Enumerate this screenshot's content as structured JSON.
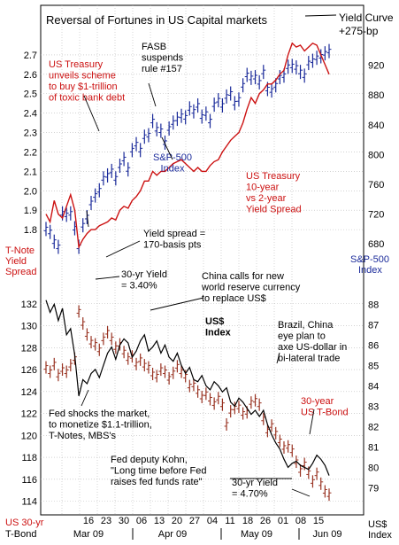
{
  "colors": {
    "background": "#ffffff",
    "grid": "#b8b8b8",
    "frame": "#000000",
    "spx": "#1a2a9a",
    "spread": "#cc1111",
    "tbond": "#993322",
    "dollar": "#000000",
    "ann_red": "#cc1111",
    "ann_blue": "#1a2a9a"
  },
  "texts": {
    "title": "Reversal of Fortunes in US Capital markets",
    "yield_curve": "Yield Curve",
    "yield_curve_value": "+275-bp",
    "left_top_label": [
      "T-Note",
      "Yield",
      "Spread"
    ],
    "right_top_label": [
      "S&P-500",
      "Index"
    ],
    "left_bottom_label": [
      "US 30-yr",
      "T-Bond"
    ],
    "right_bottom_label": [
      "US$",
      "Index"
    ]
  },
  "annotations": [
    {
      "key": "treasury_unveils",
      "lines": [
        "US Treasury",
        "unveils scheme",
        "to buy $1-trillion",
        "of toxic bank debt"
      ],
      "color": "ann_red"
    },
    {
      "key": "fasb",
      "lines": [
        "FASB",
        "suspends",
        "rule #157"
      ],
      "color": "dollar"
    },
    {
      "key": "spx_index",
      "lines": [
        "S&P-500",
        "Index"
      ],
      "color": "ann_blue"
    },
    {
      "key": "spread_series",
      "lines": [
        "US Treasury",
        "10-year",
        "vs 2-year",
        "Yield Spread"
      ],
      "color": "ann_red"
    },
    {
      "key": "yield_spread_170",
      "lines": [
        "Yield spread =",
        "170-basis pts"
      ],
      "color": "dollar"
    },
    {
      "key": "thirty_yr_340",
      "lines": [
        "30-yr Yield",
        "= 3.40%"
      ],
      "color": "dollar"
    },
    {
      "key": "china_calls",
      "lines": [
        "China calls for new",
        "world reserve currency",
        "to replace US$"
      ],
      "color": "dollar"
    },
    {
      "key": "usd_index",
      "lines": [
        "US$",
        "Index"
      ],
      "color": "dollar"
    },
    {
      "key": "brazil_china",
      "lines": [
        "Brazil, China",
        "eye plan to",
        "axe US-dollar in",
        "bi-lateral trade"
      ],
      "color": "dollar"
    },
    {
      "key": "thirty_year_tbond",
      "lines": [
        "30-year",
        "US T-Bond"
      ],
      "color": "ann_red"
    },
    {
      "key": "fed_shocks",
      "lines": [
        "Fed shocks the market,",
        "to monetize $1.1-trillion,",
        "T-Notes, MBS's"
      ],
      "color": "dollar"
    },
    {
      "key": "fed_kohn",
      "lines": [
        "Fed deputy Kohn,",
        "\"Long time before Fed",
        "raises fed funds rate\""
      ],
      "color": "dollar"
    },
    {
      "key": "thirty_yr_470",
      "lines": [
        "30-yr Yield",
        "= 4.70%"
      ],
      "color": "dollar"
    }
  ],
  "chart_data": [
    {
      "type": "line",
      "title": "Reversal of Fortunes in US Capital markets",
      "ylabel": "T-Note Yield Spread",
      "ylim": [
        1.65,
        2.8
      ],
      "yticks": [
        "2.7",
        "2.6",
        "2.5",
        "2.4",
        "2.3",
        "2.2",
        "2.1",
        "2.0",
        "1.9",
        "1.8"
      ],
      "series": [
        {
          "name": "US Treasury 10-year vs 2-year Yield Spread",
          "x": [
            0,
            1,
            2,
            3,
            4,
            5,
            6,
            7,
            8,
            9,
            10,
            11,
            12,
            13,
            14,
            15,
            16,
            17,
            18,
            19,
            20,
            21,
            22,
            23,
            24,
            25,
            26,
            27,
            28,
            29,
            30,
            31,
            32,
            33,
            34,
            35,
            36,
            37,
            38,
            39,
            40,
            41,
            42,
            43,
            44,
            45,
            46,
            47,
            48,
            49,
            50,
            51,
            52,
            53,
            54,
            55,
            56,
            57,
            58,
            59,
            60,
            61,
            62,
            63,
            64,
            65,
            66,
            67,
            68,
            69
          ],
          "values": [
            1.88,
            1.84,
            1.95,
            1.88,
            1.86,
            1.92,
            1.98,
            1.9,
            1.71,
            1.75,
            1.78,
            1.8,
            1.8,
            1.82,
            1.83,
            1.84,
            1.86,
            1.85,
            1.9,
            1.92,
            1.91,
            1.95,
            1.97,
            2.0,
            2.05,
            2.05,
            2.1,
            2.08,
            2.1,
            2.1,
            2.12,
            2.14,
            2.15,
            2.16,
            2.14,
            2.12,
            2.1,
            2.12,
            2.1,
            2.1,
            2.13,
            2.15,
            2.16,
            2.2,
            2.23,
            2.26,
            2.28,
            2.3,
            2.35,
            2.42,
            2.48,
            2.45,
            2.5,
            2.52,
            2.55,
            2.55,
            2.57,
            2.6,
            2.62,
            2.7,
            2.76,
            2.74,
            2.75,
            2.72,
            2.74,
            2.76,
            2.75,
            2.7,
            2.65,
            2.6
          ]
        }
      ]
    },
    {
      "type": "bar",
      "title": "S&P-500 Index",
      "ylabel": "S&P-500 Index",
      "ylim": [
        660,
        960
      ],
      "yticks": [
        "920",
        "880",
        "840",
        "800",
        "760",
        "720",
        "680"
      ],
      "series": [
        {
          "name": "S&P-500",
          "x": [
            0,
            1,
            2,
            3,
            4,
            5,
            6,
            7,
            8,
            9,
            10,
            11,
            12,
            13,
            14,
            15,
            16,
            17,
            18,
            19,
            20,
            21,
            22,
            23,
            24,
            25,
            26,
            27,
            28,
            29,
            30,
            31,
            32,
            33,
            34,
            35,
            36,
            37,
            38,
            39,
            40,
            41,
            42,
            43,
            44,
            45,
            46,
            47,
            48,
            49,
            50,
            51,
            52,
            53,
            54,
            55,
            56,
            57,
            58,
            59,
            60,
            61,
            62,
            63,
            64,
            65,
            66,
            67,
            68,
            69
          ],
          "values": [
            700,
            696,
            683,
            676,
            721,
            719,
            721,
            701,
            676,
            705,
            716,
            735,
            745,
            752,
            768,
            772,
            778,
            768,
            785,
            794,
            780,
            806,
            814,
            806,
            824,
            826,
            845,
            834,
            832,
            816,
            835,
            843,
            848,
            852,
            850,
            862,
            858,
            866,
            851,
            855,
            845,
            867,
            873,
            866,
            878,
            882,
            869,
            874,
            893,
            907,
            903,
            904,
            897,
            911,
            888,
            886,
            893,
            904,
            906,
            918,
            919,
            917,
            911,
            906,
            923,
            926,
            930,
            932,
            936,
            939
          ]
        }
      ]
    },
    {
      "type": "bar",
      "title": "30-year US T-Bond",
      "ylabel": "US 30-yr T-Bond",
      "ylim": [
        113,
        134
      ],
      "yticks": [
        "132",
        "130",
        "128",
        "126",
        "124",
        "122",
        "120",
        "118",
        "116",
        "114"
      ],
      "series": [
        {
          "name": "30-year US T-Bond",
          "x": [
            0,
            1,
            2,
            3,
            4,
            5,
            6,
            7,
            8,
            9,
            10,
            11,
            12,
            13,
            14,
            15,
            16,
            17,
            18,
            19,
            20,
            21,
            22,
            23,
            24,
            25,
            26,
            27,
            28,
            29,
            30,
            31,
            32,
            33,
            34,
            35,
            36,
            37,
            38,
            39,
            40,
            41,
            42,
            43,
            44,
            45,
            46,
            47,
            48,
            49,
            50,
            51,
            52,
            53,
            54,
            55,
            56,
            57,
            58,
            59,
            60,
            61,
            62,
            63,
            64,
            65,
            66,
            67,
            68,
            69
          ],
          "values": [
            126.2,
            125.8,
            126.5,
            125.5,
            126.0,
            125.8,
            126.4,
            127.0,
            131.3,
            130.2,
            129.2,
            128.5,
            128.3,
            127.8,
            128.8,
            129.4,
            128.8,
            128.0,
            128.3,
            127.6,
            127.0,
            127.2,
            126.5,
            126.9,
            126.4,
            126.2,
            125.6,
            125.4,
            126.0,
            125.8,
            125.2,
            125.7,
            126.3,
            125.8,
            125.4,
            124.5,
            124.6,
            124.0,
            123.5,
            123.8,
            123.3,
            122.9,
            123.4,
            122.8,
            121.0,
            122.2,
            122.5,
            122.6,
            122.0,
            122.1,
            123.0,
            123.2,
            122.8,
            121.5,
            120.4,
            120.9,
            120.2,
            119.5,
            118.9,
            119.0,
            118.6,
            117.6,
            116.8,
            117.4,
            116.6,
            115.8,
            116.5,
            115.6,
            114.9,
            114.6
          ]
        }
      ]
    },
    {
      "type": "line",
      "title": "US$ Index",
      "ylabel": "US$ Index",
      "ylim": [
        77.8,
        89.1
      ],
      "yticks": [
        "88",
        "87",
        "86",
        "85",
        "84",
        "83",
        "82",
        "81",
        "80",
        "79"
      ],
      "series": [
        {
          "name": "US$ Index",
          "x": [
            0,
            1,
            2,
            3,
            4,
            5,
            6,
            7,
            8,
            9,
            10,
            11,
            12,
            13,
            14,
            15,
            16,
            17,
            18,
            19,
            20,
            21,
            22,
            23,
            24,
            25,
            26,
            27,
            28,
            29,
            30,
            31,
            32,
            33,
            34,
            35,
            36,
            37,
            38,
            39,
            40,
            41,
            42,
            43,
            44,
            45,
            46,
            47,
            48,
            49,
            50,
            51,
            52,
            53,
            54,
            55,
            56,
            57,
            58,
            59,
            60,
            61,
            62,
            63,
            64,
            65,
            66,
            67,
            68,
            69
          ],
          "values": [
            88.2,
            87.6,
            88.0,
            87.2,
            87.8,
            86.5,
            86.8,
            85.5,
            83.5,
            84.3,
            84.1,
            84.6,
            84.8,
            84.4,
            85.0,
            85.6,
            85.9,
            85.3,
            86.0,
            86.3,
            86.1,
            85.4,
            85.7,
            86.2,
            86.5,
            85.7,
            85.9,
            86.2,
            85.6,
            86.0,
            85.4,
            85.2,
            85.6,
            85.0,
            84.6,
            84.9,
            84.3,
            84.2,
            84.5,
            84.0,
            83.8,
            84.2,
            84.0,
            83.7,
            83.9,
            83.2,
            83.0,
            83.4,
            83.2,
            82.9,
            82.6,
            82.8,
            82.5,
            82.8,
            82.1,
            81.6,
            81.2,
            80.9,
            80.4,
            80.0,
            80.2,
            80.3,
            80.1,
            80.0,
            79.9,
            80.2,
            80.6,
            80.4,
            80.1,
            79.6
          ]
        }
      ]
    },
    {
      "type": "line",
      "title": "X axis",
      "categories": [
        "16",
        "23",
        "30",
        "06",
        "13",
        "20",
        "27",
        "04",
        "11",
        "18",
        "26",
        "01",
        "08",
        "15"
      ],
      "months": [
        "Mar 09",
        "Apr 09",
        "May 09",
        "Jun 09"
      ]
    }
  ]
}
